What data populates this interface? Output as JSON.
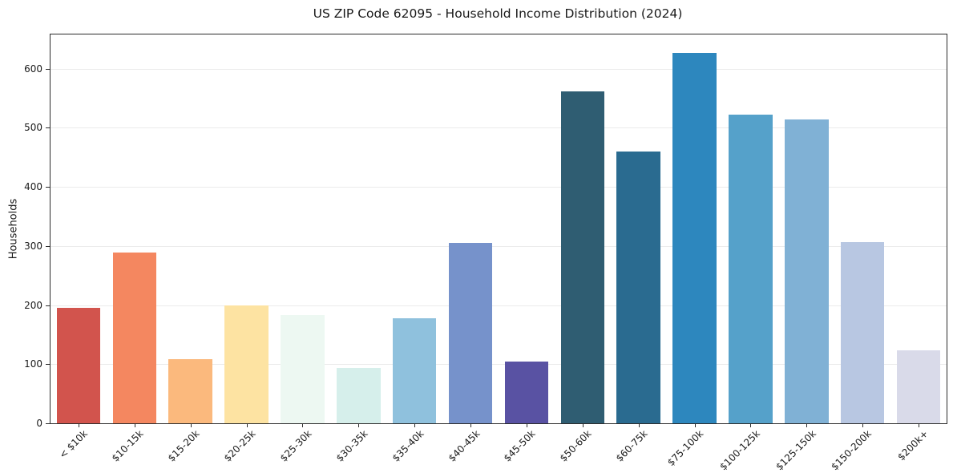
{
  "chart_data": {
    "type": "bar",
    "title": "US ZIP Code 62095 - Household Income Distribution (2024)",
    "xlabel": "",
    "ylabel": "Households",
    "categories": [
      "< $10k",
      "$10-15k",
      "$15-20k",
      "$20-25k",
      "$25-30k",
      "$30-35k",
      "$35-40k",
      "$40-45k",
      "$45-50k",
      "$50-60k",
      "$60-75k",
      "$75-100k",
      "$100-125k",
      "$125-150k",
      "$150-200k",
      "$200k+"
    ],
    "values": [
      195,
      289,
      108,
      200,
      183,
      93,
      178,
      305,
      104,
      562,
      460,
      627,
      522,
      514,
      306,
      124
    ],
    "bar_colors": [
      "#d2544d",
      "#f48760",
      "#fbb97d",
      "#fde3a2",
      "#edf8f2",
      "#d6efeb",
      "#8fc1dd",
      "#7692cb",
      "#5952a3",
      "#2f5d72",
      "#2a6b90",
      "#2d87be",
      "#55a1ca",
      "#80b1d5",
      "#b8c7e2",
      "#d9dae9"
    ],
    "ylim": [
      0,
      658
    ],
    "yticks": [
      0,
      100,
      200,
      300,
      400,
      500,
      600
    ],
    "grid": true,
    "legend": "none",
    "background": "#ffffff"
  }
}
